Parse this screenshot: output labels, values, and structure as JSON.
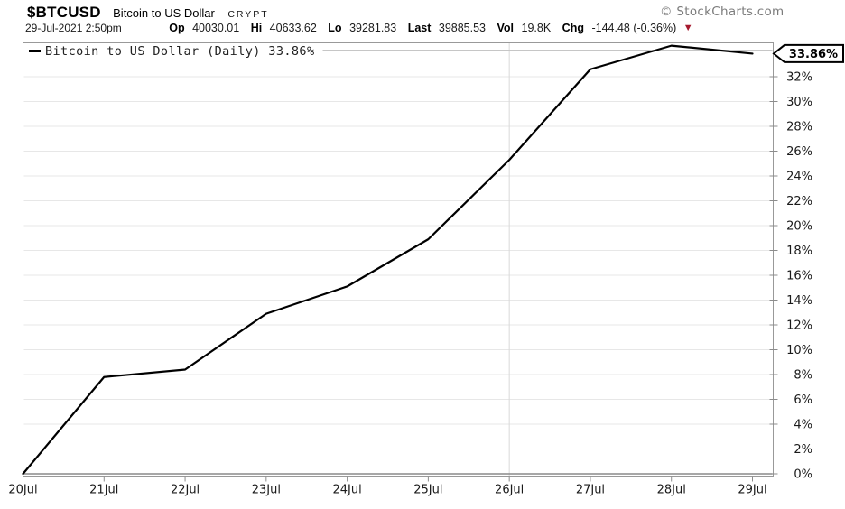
{
  "header": {
    "symbol": "$BTCUSD",
    "name": "Bitcoin to US Dollar",
    "exchange": "CRYPT",
    "copyright": "© StockCharts.com",
    "datetime": "29-Jul-2021 2:50pm",
    "quote_items": [
      {
        "label": "Op",
        "value": "40030.01"
      },
      {
        "label": "Hi",
        "value": "40633.62"
      },
      {
        "label": "Lo",
        "value": "39281.83"
      },
      {
        "label": "Last",
        "value": "39885.53"
      },
      {
        "label": "Vol",
        "value": "19.8K"
      },
      {
        "label": "Chg",
        "value": "-144.48 (-0.36%)"
      }
    ],
    "chg_arrow": "▼",
    "chg_arrow_color": "#a6192e"
  },
  "legend": {
    "label": "Bitcoin to US Dollar (Daily)",
    "value": "33.86%"
  },
  "value_flag": "33.86%",
  "chart_data": {
    "type": "line",
    "title": "Bitcoin to US Dollar (Daily)",
    "categories": [
      "20Jul",
      "21Jul",
      "22Jul",
      "23Jul",
      "24Jul",
      "25Jul",
      "26Jul",
      "27Jul",
      "28Jul",
      "29Jul"
    ],
    "values": [
      0,
      7.8,
      8.4,
      12.9,
      15.1,
      18.9,
      25.3,
      32.6,
      34.5,
      33.86
    ],
    "unit": "%",
    "last_value": 33.86,
    "ylim": [
      0,
      34.8
    ],
    "y_tick_min": 0,
    "y_tick_max": 32,
    "y_tick_step": 2,
    "grid": true,
    "vertical_gridline_at": "26Jul",
    "legend_position": "top-left",
    "line_color": "#000000",
    "colors": {
      "hgrid": "#e7e7e7",
      "vgrid": "#d9d9d9",
      "border": "#999999",
      "tick": "#8c8c8c",
      "zero_line": "#8a8a8a",
      "legend_divider": "#c6c6c6"
    }
  }
}
